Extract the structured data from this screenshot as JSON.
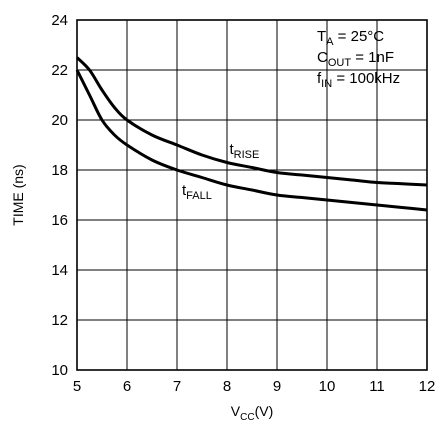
{
  "chart_data": {
    "type": "line",
    "xlabel": {
      "main": "V",
      "sub": "CC",
      "unit": "(V)"
    },
    "ylabel": "TIME (ns)",
    "xlim": [
      5,
      12
    ],
    "ylim": [
      10,
      24
    ],
    "xticks": [
      5,
      6,
      7,
      8,
      9,
      10,
      11,
      12
    ],
    "yticks": [
      10,
      12,
      14,
      16,
      18,
      20,
      22,
      24
    ],
    "grid": true,
    "conditions": [
      {
        "main": "T",
        "sub": "A",
        "rest": " = 25°C"
      },
      {
        "main": "C",
        "sub": "OUT",
        "rest": " = 1nF"
      },
      {
        "main": "f",
        "sub": "IN",
        "rest": " = 100kHz"
      }
    ],
    "series": [
      {
        "name": "tRISE",
        "label": {
          "main": "t",
          "sub": "RISE"
        },
        "x": [
          5,
          5.25,
          5.5,
          5.75,
          6,
          6.5,
          7,
          7.5,
          8,
          8.5,
          9,
          9.5,
          10,
          10.5,
          11,
          11.5,
          12
        ],
        "y": [
          22.5,
          22.0,
          21.2,
          20.5,
          20.0,
          19.4,
          19.0,
          18.6,
          18.3,
          18.1,
          17.9,
          17.8,
          17.7,
          17.6,
          17.5,
          17.45,
          17.4
        ]
      },
      {
        "name": "tFALL",
        "label": {
          "main": "t",
          "sub": "FALL"
        },
        "x": [
          5,
          5.25,
          5.5,
          5.75,
          6,
          6.5,
          7,
          7.5,
          8,
          8.5,
          9,
          9.5,
          10,
          10.5,
          11,
          11.5,
          12
        ],
        "y": [
          22.0,
          21.0,
          20.0,
          19.4,
          19.0,
          18.4,
          18.0,
          17.7,
          17.4,
          17.2,
          17.0,
          16.9,
          16.8,
          16.7,
          16.6,
          16.5,
          16.4
        ]
      }
    ]
  }
}
